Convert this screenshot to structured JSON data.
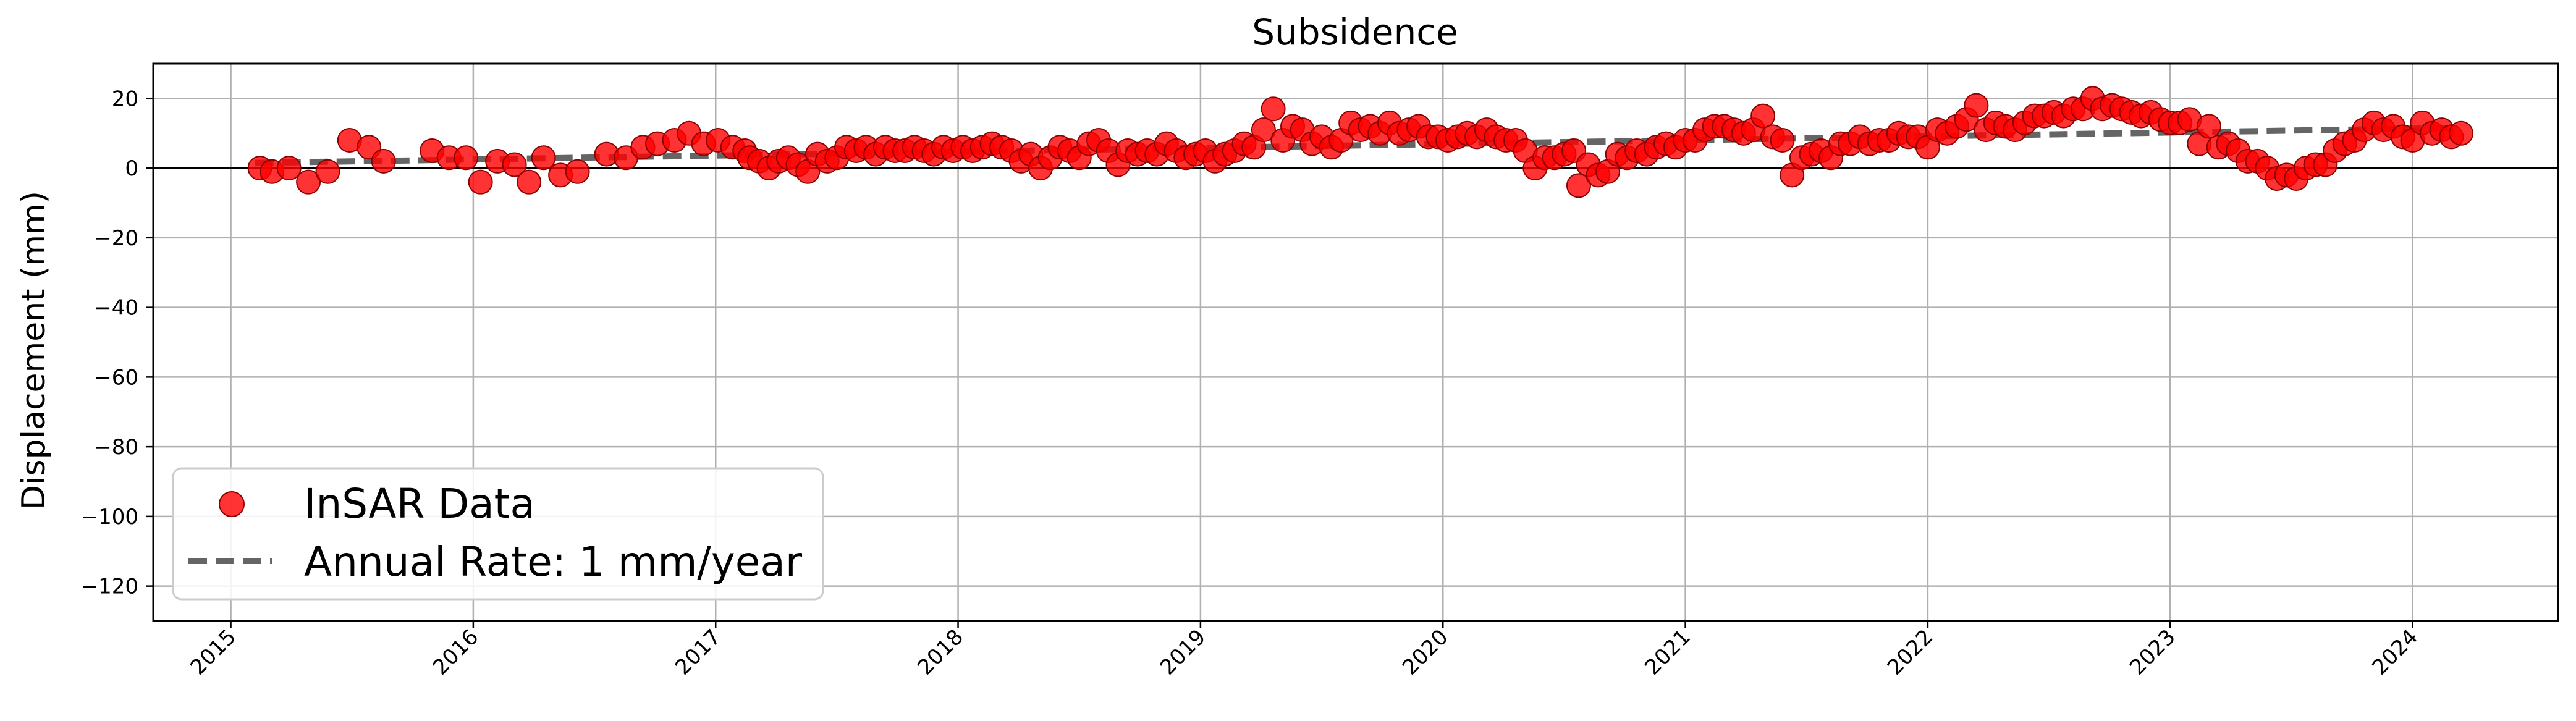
{
  "chart_data": {
    "type": "scatter",
    "title": "Subsidence",
    "xlabel": "",
    "ylabel": "Displacement (mm)",
    "xlim": [
      2014.68,
      2024.6
    ],
    "ylim": [
      -130,
      30
    ],
    "yticks": [
      20,
      0,
      -20,
      -40,
      -60,
      -80,
      -100,
      -120
    ],
    "xticks": [
      "2015",
      "2016",
      "2017",
      "2018",
      "2019",
      "2020",
      "2021",
      "2022",
      "2023",
      "2024"
    ],
    "grid": true,
    "zero_line": true,
    "legend": {
      "placement": "lower-left"
    },
    "colors": {
      "points": "#ff0000",
      "point_edge": "#8b0000",
      "trend": "#555555",
      "grid": "#b0b0b0"
    },
    "series": [
      {
        "name": "InSAR Data",
        "kind": "scatter",
        "points": [
          [
            2015.12,
            0
          ],
          [
            2015.17,
            -1
          ],
          [
            2015.24,
            0
          ],
          [
            2015.32,
            -4
          ],
          [
            2015.4,
            -1
          ],
          [
            2015.49,
            8
          ],
          [
            2015.57,
            6
          ],
          [
            2015.63,
            2
          ],
          [
            2015.83,
            5
          ],
          [
            2015.9,
            3
          ],
          [
            2015.97,
            3
          ],
          [
            2016.03,
            -4
          ],
          [
            2016.1,
            2
          ],
          [
            2016.17,
            1
          ],
          [
            2016.23,
            -4
          ],
          [
            2016.29,
            3
          ],
          [
            2016.36,
            -2
          ],
          [
            2016.43,
            -1
          ],
          [
            2016.55,
            4
          ],
          [
            2016.63,
            3
          ],
          [
            2016.7,
            6
          ],
          [
            2016.76,
            7
          ],
          [
            2016.83,
            8
          ],
          [
            2016.89,
            10
          ],
          [
            2016.95,
            7
          ],
          [
            2017.01,
            8
          ],
          [
            2017.07,
            6
          ],
          [
            2017.12,
            5
          ],
          [
            2017.14,
            3
          ],
          [
            2017.18,
            2
          ],
          [
            2017.22,
            0
          ],
          [
            2017.26,
            2
          ],
          [
            2017.3,
            3
          ],
          [
            2017.34,
            1
          ],
          [
            2017.38,
            -1
          ],
          [
            2017.42,
            4
          ],
          [
            2017.46,
            2
          ],
          [
            2017.5,
            3
          ],
          [
            2017.54,
            6
          ],
          [
            2017.58,
            5
          ],
          [
            2017.62,
            6
          ],
          [
            2017.66,
            4
          ],
          [
            2017.7,
            6
          ],
          [
            2017.74,
            5
          ],
          [
            2017.78,
            5
          ],
          [
            2017.82,
            6
          ],
          [
            2017.86,
            5
          ],
          [
            2017.9,
            4
          ],
          [
            2017.94,
            6
          ],
          [
            2017.98,
            5
          ],
          [
            2018.02,
            6
          ],
          [
            2018.06,
            5
          ],
          [
            2018.1,
            6
          ],
          [
            2018.14,
            7
          ],
          [
            2018.18,
            6
          ],
          [
            2018.22,
            5
          ],
          [
            2018.26,
            2
          ],
          [
            2018.3,
            4
          ],
          [
            2018.34,
            0
          ],
          [
            2018.38,
            3
          ],
          [
            2018.42,
            6
          ],
          [
            2018.46,
            5
          ],
          [
            2018.5,
            3
          ],
          [
            2018.54,
            7
          ],
          [
            2018.58,
            8
          ],
          [
            2018.62,
            5
          ],
          [
            2018.66,
            1
          ],
          [
            2018.7,
            5
          ],
          [
            2018.74,
            4
          ],
          [
            2018.78,
            5
          ],
          [
            2018.82,
            4
          ],
          [
            2018.86,
            7
          ],
          [
            2018.9,
            5
          ],
          [
            2018.94,
            3
          ],
          [
            2018.98,
            4
          ],
          [
            2019.02,
            5
          ],
          [
            2019.06,
            2
          ],
          [
            2019.1,
            4
          ],
          [
            2019.14,
            5
          ],
          [
            2019.18,
            7
          ],
          [
            2019.22,
            6
          ],
          [
            2019.26,
            11
          ],
          [
            2019.3,
            17
          ],
          [
            2019.34,
            8
          ],
          [
            2019.38,
            12
          ],
          [
            2019.42,
            11
          ],
          [
            2019.46,
            7
          ],
          [
            2019.5,
            9
          ],
          [
            2019.54,
            6
          ],
          [
            2019.58,
            8
          ],
          [
            2019.62,
            13
          ],
          [
            2019.66,
            11
          ],
          [
            2019.7,
            12
          ],
          [
            2019.74,
            10
          ],
          [
            2019.78,
            13
          ],
          [
            2019.82,
            10
          ],
          [
            2019.86,
            11
          ],
          [
            2019.9,
            12
          ],
          [
            2019.94,
            9
          ],
          [
            2019.98,
            9
          ],
          [
            2020.02,
            8
          ],
          [
            2020.06,
            9
          ],
          [
            2020.1,
            10
          ],
          [
            2020.14,
            9
          ],
          [
            2020.18,
            11
          ],
          [
            2020.22,
            9
          ],
          [
            2020.26,
            8
          ],
          [
            2020.3,
            8
          ],
          [
            2020.34,
            5
          ],
          [
            2020.38,
            0
          ],
          [
            2020.42,
            3
          ],
          [
            2020.46,
            3
          ],
          [
            2020.5,
            4
          ],
          [
            2020.54,
            5
          ],
          [
            2020.56,
            -5
          ],
          [
            2020.6,
            1
          ],
          [
            2020.64,
            -2
          ],
          [
            2020.68,
            -1
          ],
          [
            2020.72,
            4
          ],
          [
            2020.76,
            3
          ],
          [
            2020.8,
            5
          ],
          [
            2020.84,
            4
          ],
          [
            2020.88,
            6
          ],
          [
            2020.92,
            7
          ],
          [
            2020.96,
            6
          ],
          [
            2021.0,
            8
          ],
          [
            2021.04,
            8
          ],
          [
            2021.08,
            11
          ],
          [
            2021.12,
            12
          ],
          [
            2021.16,
            12
          ],
          [
            2021.2,
            11
          ],
          [
            2021.24,
            10
          ],
          [
            2021.28,
            11
          ],
          [
            2021.32,
            15
          ],
          [
            2021.36,
            9
          ],
          [
            2021.4,
            8
          ],
          [
            2021.44,
            -2
          ],
          [
            2021.48,
            3
          ],
          [
            2021.52,
            4
          ],
          [
            2021.56,
            5
          ],
          [
            2021.6,
            3
          ],
          [
            2021.64,
            7
          ],
          [
            2021.68,
            7
          ],
          [
            2021.72,
            9
          ],
          [
            2021.76,
            7
          ],
          [
            2021.8,
            8
          ],
          [
            2021.84,
            8
          ],
          [
            2021.88,
            10
          ],
          [
            2021.92,
            9
          ],
          [
            2021.96,
            9
          ],
          [
            2022.0,
            6
          ],
          [
            2022.04,
            11
          ],
          [
            2022.08,
            10
          ],
          [
            2022.12,
            12
          ],
          [
            2022.16,
            14
          ],
          [
            2022.2,
            18
          ],
          [
            2022.24,
            11
          ],
          [
            2022.28,
            13
          ],
          [
            2022.32,
            12
          ],
          [
            2022.36,
            11
          ],
          [
            2022.4,
            13
          ],
          [
            2022.44,
            15
          ],
          [
            2022.48,
            15
          ],
          [
            2022.52,
            16
          ],
          [
            2022.56,
            15
          ],
          [
            2022.6,
            17
          ],
          [
            2022.64,
            17
          ],
          [
            2022.68,
            20
          ],
          [
            2022.72,
            17
          ],
          [
            2022.76,
            18
          ],
          [
            2022.8,
            17
          ],
          [
            2022.84,
            16
          ],
          [
            2022.88,
            15
          ],
          [
            2022.92,
            16
          ],
          [
            2022.96,
            14
          ],
          [
            2023.0,
            13
          ],
          [
            2023.04,
            13
          ],
          [
            2023.08,
            14
          ],
          [
            2023.12,
            7
          ],
          [
            2023.16,
            12
          ],
          [
            2023.2,
            6
          ],
          [
            2023.24,
            7
          ],
          [
            2023.28,
            5
          ],
          [
            2023.32,
            2
          ],
          [
            2023.36,
            2
          ],
          [
            2023.4,
            0
          ],
          [
            2023.44,
            -3
          ],
          [
            2023.48,
            -2
          ],
          [
            2023.52,
            -3
          ],
          [
            2023.56,
            0
          ],
          [
            2023.6,
            1
          ],
          [
            2023.64,
            1
          ],
          [
            2023.68,
            5
          ],
          [
            2023.72,
            7
          ],
          [
            2023.76,
            8
          ],
          [
            2023.8,
            11
          ],
          [
            2023.84,
            13
          ],
          [
            2023.88,
            11
          ],
          [
            2023.92,
            12
          ],
          [
            2023.96,
            9
          ],
          [
            2024.0,
            8
          ],
          [
            2024.04,
            13
          ],
          [
            2024.08,
            10
          ],
          [
            2024.12,
            11
          ],
          [
            2024.16,
            9
          ],
          [
            2024.2,
            10
          ]
        ]
      },
      {
        "name": "Annual Rate: 1 mm/year",
        "kind": "trend",
        "start": [
          2015.1,
          1.5
        ],
        "end": [
          2024.15,
          11.5
        ]
      }
    ]
  }
}
